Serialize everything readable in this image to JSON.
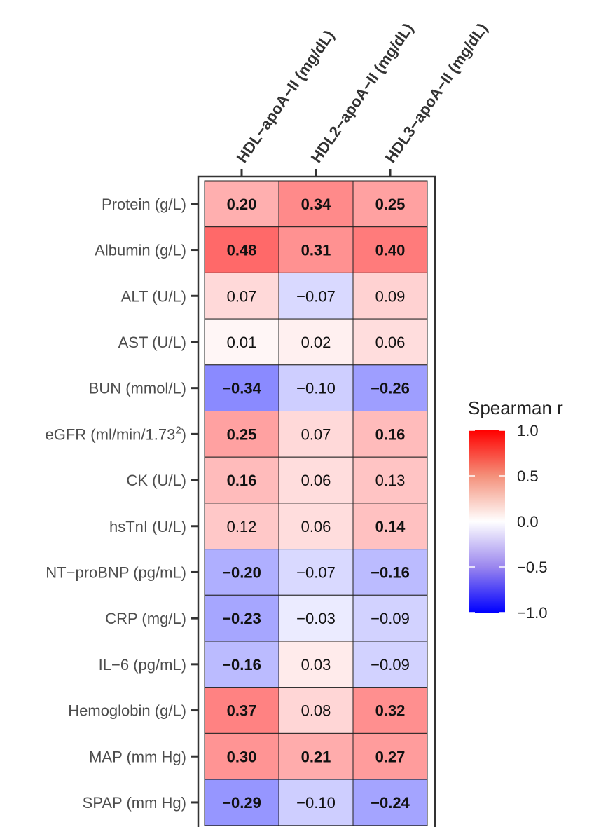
{
  "chart_data": {
    "type": "heatmap",
    "columns": [
      "HDL−apoA−II (mg/dL)",
      "HDL2−apoA−II (mg/dL)",
      "HDL3−apoA−II (mg/dL)"
    ],
    "rows": [
      {
        "label": "Protein (g/L)",
        "values": [
          0.2,
          0.34,
          0.25
        ],
        "texts": [
          "0.20",
          "0.34",
          "0.25"
        ],
        "bold": [
          true,
          true,
          true
        ]
      },
      {
        "label": "Albumin (g/L)",
        "values": [
          0.48,
          0.31,
          0.4
        ],
        "texts": [
          "0.48",
          "0.31",
          "0.40"
        ],
        "bold": [
          true,
          true,
          true
        ]
      },
      {
        "label": "ALT (U/L)",
        "values": [
          0.07,
          -0.07,
          0.09
        ],
        "texts": [
          "0.07",
          "−0.07",
          "0.09"
        ],
        "bold": [
          false,
          false,
          false
        ]
      },
      {
        "label": "AST (U/L)",
        "values": [
          0.01,
          0.02,
          0.06
        ],
        "texts": [
          "0.01",
          "0.02",
          "0.06"
        ],
        "bold": [
          false,
          false,
          false
        ]
      },
      {
        "label": "BUN (mmol/L)",
        "values": [
          -0.34,
          -0.1,
          -0.26
        ],
        "texts": [
          "−0.34",
          "−0.10",
          "−0.26"
        ],
        "bold": [
          true,
          false,
          true
        ]
      },
      {
        "label": "eGFR (ml/min/1.73",
        "label_sup": "2",
        "label_tail": ")",
        "values": [
          0.25,
          0.07,
          0.16
        ],
        "texts": [
          "0.25",
          "0.07",
          "0.16"
        ],
        "bold": [
          true,
          false,
          true
        ]
      },
      {
        "label": "CK (U/L)",
        "values": [
          0.16,
          0.06,
          0.13
        ],
        "texts": [
          "0.16",
          "0.06",
          "0.13"
        ],
        "bold": [
          true,
          false,
          false
        ]
      },
      {
        "label": "hsTnI (U/L)",
        "values": [
          0.12,
          0.06,
          0.14
        ],
        "texts": [
          "0.12",
          "0.06",
          "0.14"
        ],
        "bold": [
          false,
          false,
          true
        ]
      },
      {
        "label": "NT−proBNP (pg/mL)",
        "values": [
          -0.2,
          -0.07,
          -0.16
        ],
        "texts": [
          "−0.20",
          "−0.07",
          "−0.16"
        ],
        "bold": [
          true,
          false,
          true
        ]
      },
      {
        "label": "CRP (mg/L)",
        "values": [
          -0.23,
          -0.03,
          -0.09
        ],
        "texts": [
          "−0.23",
          "−0.03",
          "−0.09"
        ],
        "bold": [
          true,
          false,
          false
        ]
      },
      {
        "label": "IL−6 (pg/mL)",
        "values": [
          -0.16,
          0.03,
          -0.09
        ],
        "texts": [
          "−0.16",
          "0.03",
          "−0.09"
        ],
        "bold": [
          true,
          false,
          false
        ]
      },
      {
        "label": "Hemoglobin (g/L)",
        "values": [
          0.37,
          0.08,
          0.32
        ],
        "texts": [
          "0.37",
          "0.08",
          "0.32"
        ],
        "bold": [
          true,
          false,
          true
        ]
      },
      {
        "label": "MAP (mm Hg)",
        "values": [
          0.3,
          0.21,
          0.27
        ],
        "texts": [
          "0.30",
          "0.21",
          "0.27"
        ],
        "bold": [
          true,
          true,
          true
        ]
      },
      {
        "label": "SPAP (mm Hg)",
        "values": [
          -0.29,
          -0.1,
          -0.24
        ],
        "texts": [
          "−0.29",
          "−0.10",
          "−0.24"
        ],
        "bold": [
          true,
          false,
          true
        ]
      }
    ],
    "legend": {
      "title": "Spearman r",
      "ticks": [
        "1.0",
        "0.5",
        "0.0",
        "−0.5",
        "−1.0"
      ],
      "tick_values": [
        1.0,
        0.5,
        0.0,
        -0.5,
        -1.0
      ],
      "range": [
        -1.0,
        1.0
      ],
      "placement": "right"
    },
    "colors": {
      "low": "#0000ff",
      "mid": "#ffffff",
      "high": "#ff0000",
      "panel_border": "#333333",
      "cell_border": "#222222"
    }
  }
}
